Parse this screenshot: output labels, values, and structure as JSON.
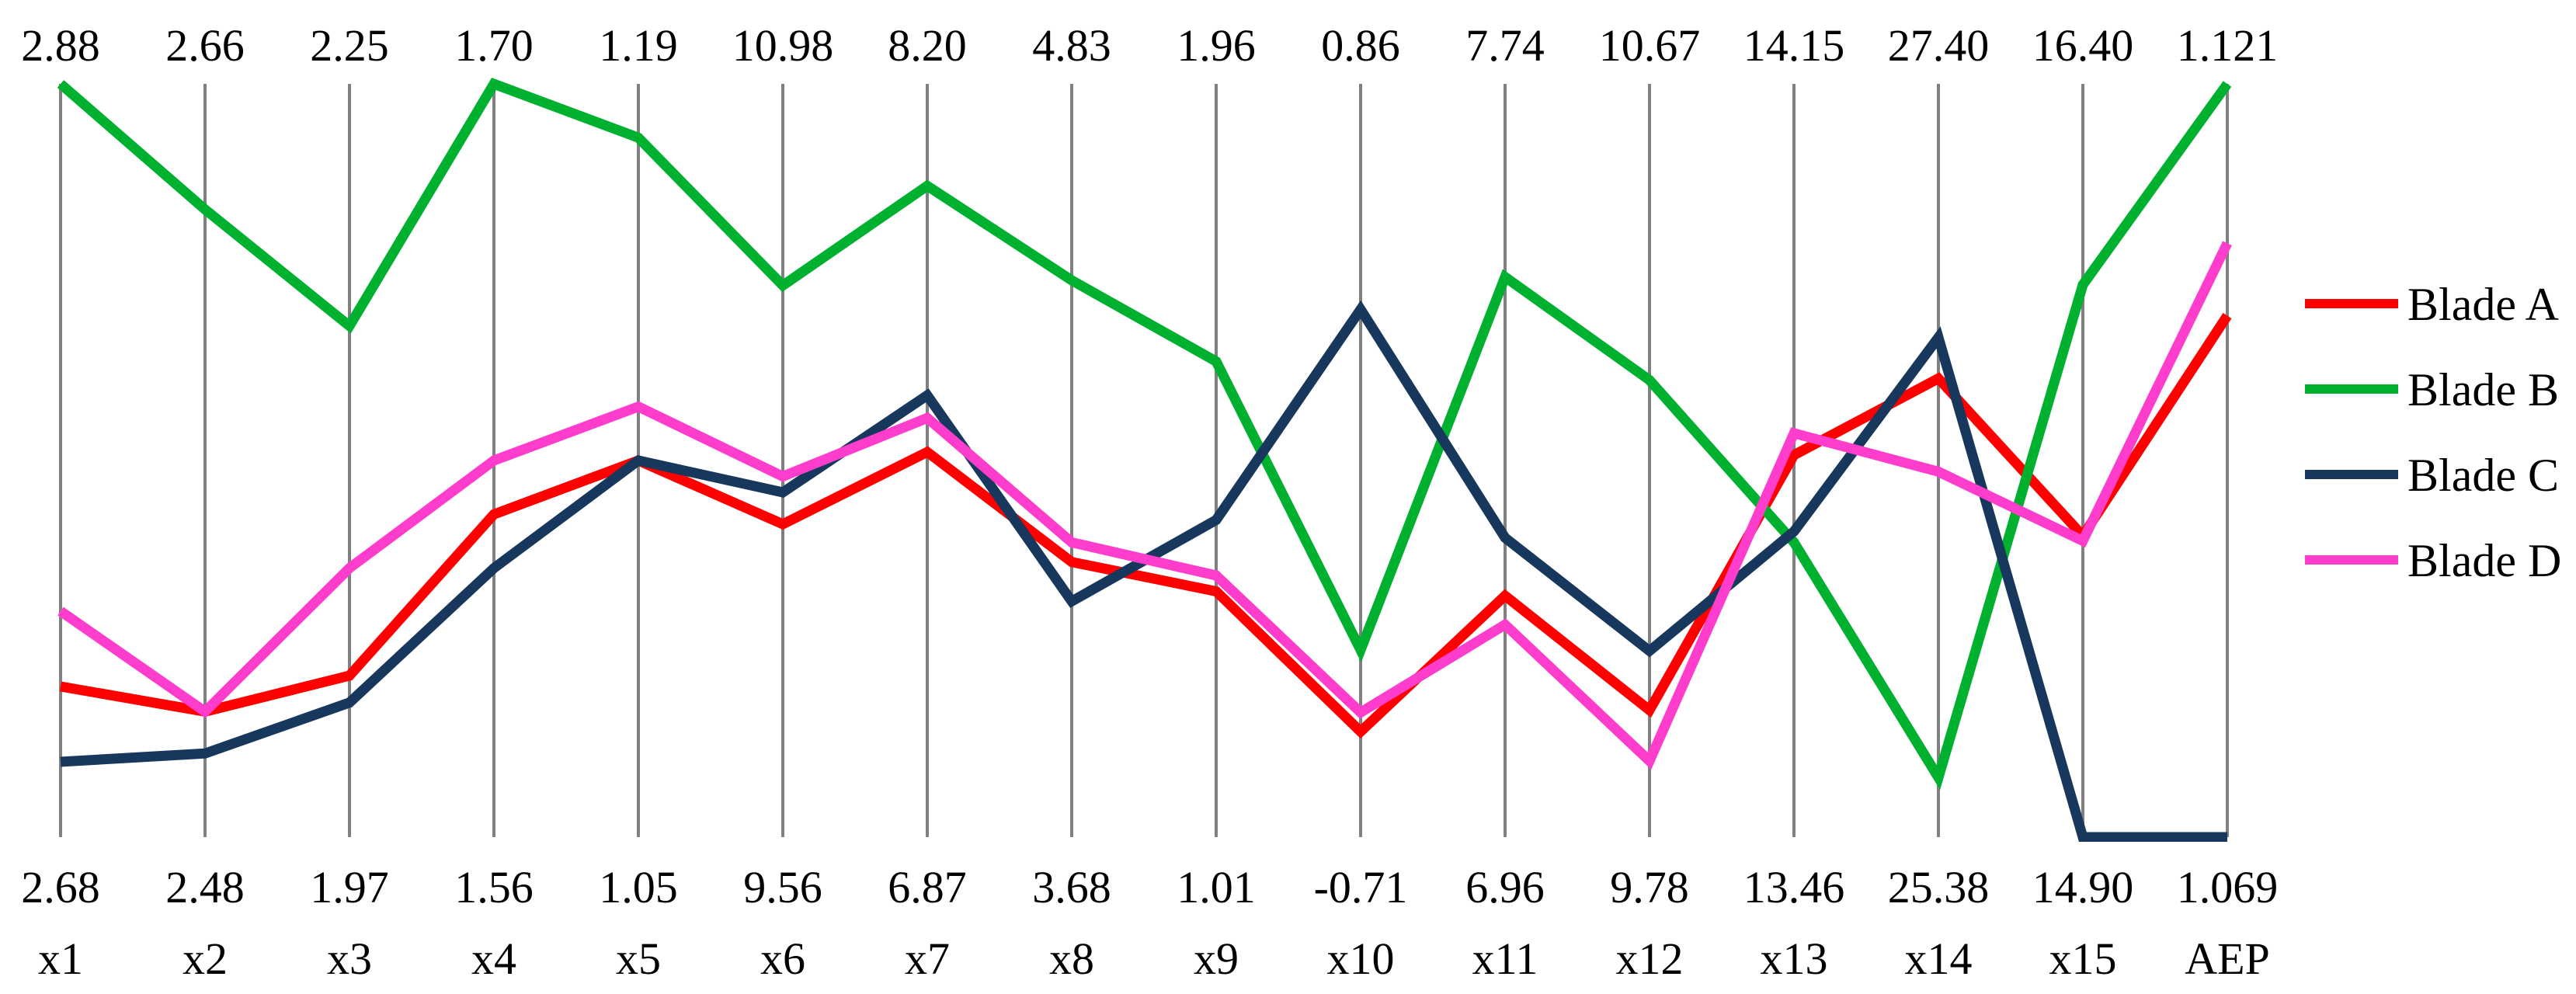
{
  "figure": {
    "background": "#FFFFFF",
    "text_color": "#000000",
    "axis_line_color": "#808080"
  },
  "chart_data": {
    "type": "line",
    "subtype": "parallel-coordinates",
    "title": "",
    "grid": "vertical-axis-lines-only",
    "legend_position": "right-outside",
    "axes": [
      {
        "name": "x1",
        "max_label": "2.88",
        "min_label": "2.68",
        "max": 2.88,
        "min": 2.68
      },
      {
        "name": "x2",
        "max_label": "2.66",
        "min_label": "2.48",
        "max": 2.66,
        "min": 2.48
      },
      {
        "name": "x3",
        "max_label": "2.25",
        "min_label": "1.97",
        "max": 2.25,
        "min": 1.97
      },
      {
        "name": "x4",
        "max_label": "1.70",
        "min_label": "1.56",
        "max": 1.7,
        "min": 1.56
      },
      {
        "name": "x5",
        "max_label": "1.19",
        "min_label": "1.05",
        "max": 1.19,
        "min": 1.05
      },
      {
        "name": "x6",
        "max_label": "10.98",
        "min_label": "9.56",
        "max": 10.98,
        "min": 9.56
      },
      {
        "name": "x7",
        "max_label": "8.20",
        "min_label": "6.87",
        "max": 8.2,
        "min": 6.87
      },
      {
        "name": "x8",
        "max_label": "4.83",
        "min_label": "3.68",
        "max": 4.83,
        "min": 3.68
      },
      {
        "name": "x9",
        "max_label": "1.96",
        "min_label": "1.01",
        "max": 1.96,
        "min": 1.01
      },
      {
        "name": "x10",
        "max_label": "0.86",
        "min_label": "-0.71",
        "max": 0.86,
        "min": -0.71
      },
      {
        "name": "x11",
        "max_label": "7.74",
        "min_label": "6.96",
        "max": 7.74,
        "min": 6.96
      },
      {
        "name": "x12",
        "max_label": "10.67",
        "min_label": "9.78",
        "max": 10.67,
        "min": 9.78
      },
      {
        "name": "x13",
        "max_label": "14.15",
        "min_label": "13.46",
        "max": 14.15,
        "min": 13.46
      },
      {
        "name": "x14",
        "max_label": "27.40",
        "min_label": "25.38",
        "max": 27.4,
        "min": 25.38
      },
      {
        "name": "x15",
        "max_label": "16.40",
        "min_label": "14.90",
        "max": 16.4,
        "min": 14.9
      },
      {
        "name": "AEP",
        "max_label": "1.121",
        "min_label": "1.069",
        "max": 1.121,
        "min": 1.069
      }
    ],
    "series": [
      {
        "name": "Blade A",
        "color": "#FF0000",
        "values": [
          2.72,
          2.51,
          2.03,
          1.62,
          1.12,
          10.15,
          7.55,
          4.1,
          1.32,
          -0.49,
          7.21,
          9.93,
          13.81,
          26.61,
          15.5,
          1.105
        ]
      },
      {
        "name": "Blade B",
        "color": "#00B02F",
        "values": [
          2.88,
          2.63,
          2.16,
          1.7,
          1.18,
          10.6,
          8.02,
          4.53,
          1.61,
          -0.32,
          7.54,
          10.32,
          13.73,
          25.54,
          16.0,
          1.121
        ]
      },
      {
        "name": "Blade C",
        "color": "#17375D",
        "values": [
          2.7,
          2.5,
          2.02,
          1.61,
          1.12,
          10.21,
          7.65,
          4.04,
          1.41,
          0.39,
          7.27,
          10.0,
          13.74,
          26.72,
          14.9,
          1.069
        ]
      },
      {
        "name": "Blade D",
        "color": "#FF3DCC",
        "values": [
          2.74,
          2.51,
          2.07,
          1.63,
          1.13,
          10.24,
          7.61,
          4.13,
          1.34,
          -0.45,
          7.18,
          9.87,
          13.83,
          26.36,
          15.49,
          1.11
        ]
      }
    ]
  }
}
